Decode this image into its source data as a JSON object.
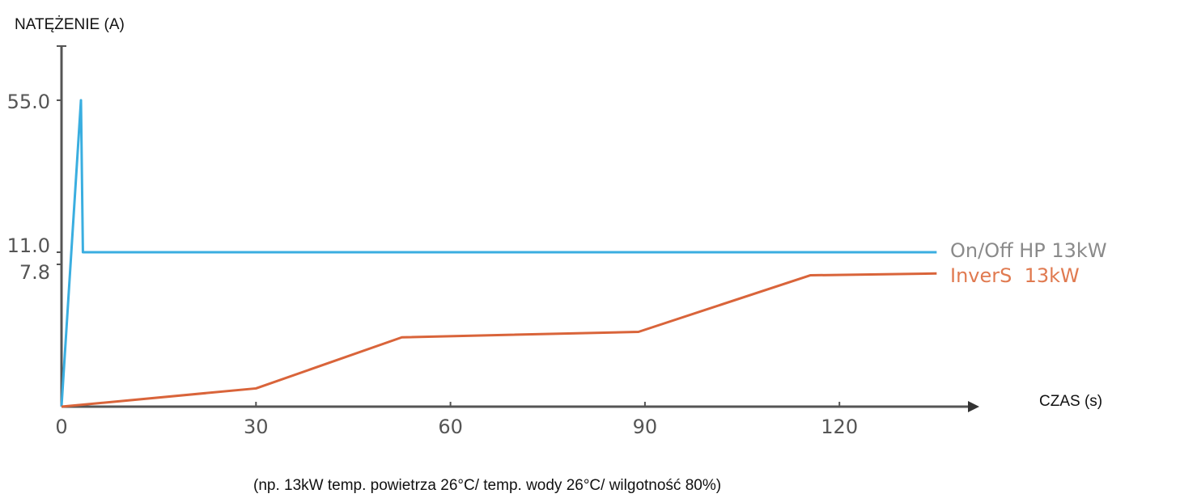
{
  "chart_data": {
    "type": "line",
    "xlabel": "CZAS (s)",
    "ylabel": "NATĘŻENIE (A)",
    "x_ticks": [
      "0",
      "30",
      "60",
      "90",
      "120"
    ],
    "y_ticks": [
      "55.0",
      "11.0",
      "7.8"
    ],
    "xlim": [
      0,
      140
    ],
    "ylim": [
      0,
      60
    ],
    "grid": false,
    "legend_position": "right",
    "series": [
      {
        "name": "On/Off HP 13kW",
        "color": "#3aaee0",
        "x": [
          0,
          3,
          3.3,
          135
        ],
        "y": [
          0,
          55,
          11,
          11
        ]
      },
      {
        "name": "InverS  13kW",
        "color": "#d9643a",
        "x": [
          0,
          30,
          52.5,
          89,
          115.5,
          135
        ],
        "y": [
          0,
          1.0,
          3.8,
          4.1,
          7.2,
          7.3
        ]
      }
    ],
    "annotation": "(np. 13kW temp. powietrza 26°C/ temp. wody 26°C/ wilgotność 80%)"
  },
  "colors": {
    "axis": "#555555",
    "legend_onoff": "#8a8a8a",
    "legend_invers": "#e07a50"
  }
}
